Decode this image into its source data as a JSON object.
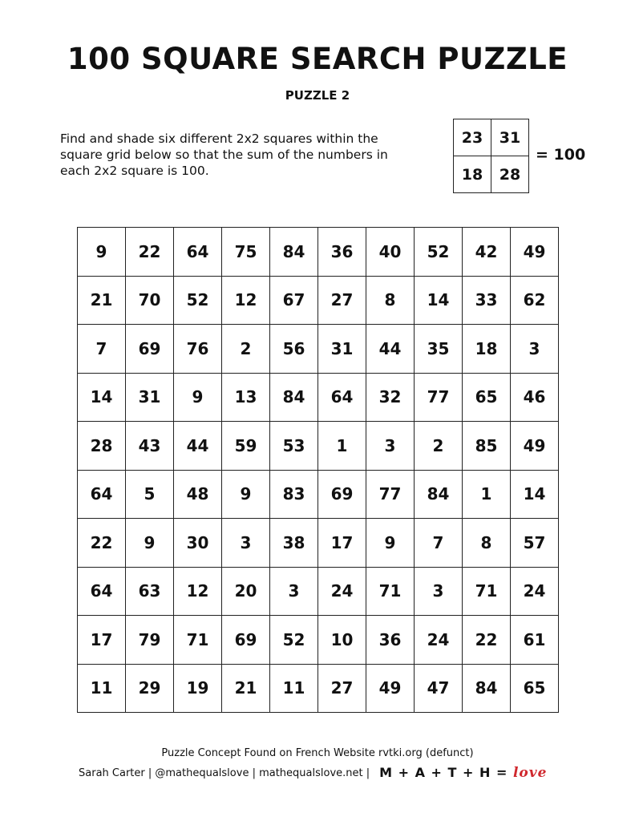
{
  "title": "100 SQUARE SEARCH PUZZLE",
  "subtitle": "PUZZLE 2",
  "instructions": "Find and shade six different 2x2 squares within the square grid below so that the sum of the numbers in each 2x2 square is 100.",
  "example": {
    "cells": [
      [
        23,
        31
      ],
      [
        18,
        28
      ]
    ],
    "equals": "= 100"
  },
  "grid": [
    [
      9,
      22,
      64,
      75,
      84,
      36,
      40,
      52,
      42,
      49
    ],
    [
      21,
      70,
      52,
      12,
      67,
      27,
      8,
      14,
      33,
      62
    ],
    [
      7,
      69,
      76,
      2,
      56,
      31,
      44,
      35,
      18,
      3
    ],
    [
      14,
      31,
      9,
      13,
      84,
      64,
      32,
      77,
      65,
      46
    ],
    [
      28,
      43,
      44,
      59,
      53,
      1,
      3,
      2,
      85,
      49
    ],
    [
      64,
      5,
      48,
      9,
      83,
      69,
      77,
      84,
      1,
      14
    ],
    [
      22,
      9,
      30,
      3,
      38,
      17,
      9,
      7,
      8,
      57
    ],
    [
      64,
      63,
      12,
      20,
      3,
      24,
      71,
      3,
      71,
      24
    ],
    [
      17,
      79,
      71,
      69,
      52,
      10,
      36,
      24,
      22,
      61
    ],
    [
      11,
      29,
      19,
      21,
      11,
      27,
      49,
      47,
      84,
      65
    ]
  ],
  "footer": {
    "credit": "Puzzle Concept Found on French Website rvtki.org (defunct)",
    "author": "Sarah Carter | @mathequalslove | mathequalslove.net |",
    "logo_text": "M + A + T + H =",
    "logo_love": "love",
    "logo_color": "#d0282e"
  }
}
